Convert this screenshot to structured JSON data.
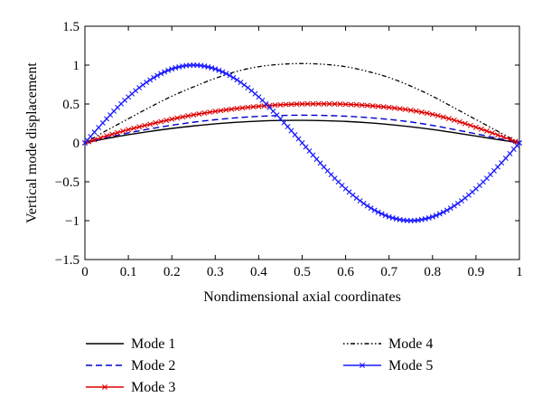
{
  "chart_data": {
    "type": "line",
    "title": "",
    "xlabel": "Nondimensional axial coordinates",
    "ylabel": "Vertical mode displacement",
    "xlim": [
      0,
      1
    ],
    "ylim": [
      -1.5,
      1.5
    ],
    "xticks": [
      0,
      0.1,
      0.2,
      0.3,
      0.4,
      0.5,
      0.6,
      0.7,
      0.8,
      0.9,
      1
    ],
    "yticks": [
      -1.5,
      -1,
      -0.5,
      0,
      0.5,
      1,
      1.5
    ],
    "xtick_labels": [
      "0",
      "0.1",
      "0.2",
      "0.3",
      "0.4",
      "0.5",
      "0.6",
      "0.7",
      "0.8",
      "0.9",
      "1"
    ],
    "ytick_labels": [
      "−1.5",
      "−1",
      "−0.5",
      "0",
      "0.5",
      "1",
      "1.5"
    ],
    "grid": false,
    "legend_placement": "below",
    "x": [
      0,
      0.05,
      0.1,
      0.15,
      0.2,
      0.25,
      0.3,
      0.35,
      0.4,
      0.45,
      0.5,
      0.55,
      0.6,
      0.65,
      0.7,
      0.75,
      0.8,
      0.85,
      0.9,
      0.95,
      1
    ],
    "series": [
      {
        "name": "Mode 1",
        "color": "#000000",
        "style": "solid",
        "marker": "none",
        "values": [
          0,
          0.056,
          0.105,
          0.148,
          0.186,
          0.218,
          0.245,
          0.265,
          0.28,
          0.288,
          0.29,
          0.286,
          0.276,
          0.259,
          0.236,
          0.207,
          0.172,
          0.131,
          0.088,
          0.043,
          0
        ]
      },
      {
        "name": "Mode 2",
        "color": "#0000cc",
        "style": "dashed",
        "marker": "none",
        "values": [
          0,
          0.068,
          0.128,
          0.181,
          0.227,
          0.266,
          0.298,
          0.323,
          0.341,
          0.352,
          0.356,
          0.353,
          0.343,
          0.326,
          0.302,
          0.269,
          0.225,
          0.172,
          0.117,
          0.059,
          0
        ]
      },
      {
        "name": "Mode 3",
        "color": "#dd0000",
        "style": "solid",
        "marker": "x",
        "values": [
          0,
          0.09,
          0.17,
          0.24,
          0.305,
          0.36,
          0.405,
          0.442,
          0.47,
          0.49,
          0.5,
          0.502,
          0.496,
          0.481,
          0.456,
          0.42,
          0.367,
          0.292,
          0.201,
          0.102,
          0
        ]
      },
      {
        "name": "Mode 4",
        "color": "#000000",
        "style": "dashdot",
        "marker": "none",
        "values": [
          0,
          0.16,
          0.31,
          0.46,
          0.6,
          0.72,
          0.83,
          0.92,
          0.98,
          1.01,
          1.02,
          1.01,
          0.98,
          0.92,
          0.84,
          0.73,
          0.6,
          0.45,
          0.3,
          0.15,
          0
        ]
      },
      {
        "name": "Mode 5",
        "color": "#1a1aff",
        "style": "solid",
        "marker": "x",
        "values": [
          0,
          0.31,
          0.59,
          0.81,
          0.95,
          1,
          0.95,
          0.81,
          0.59,
          0.31,
          0,
          -0.31,
          -0.59,
          -0.81,
          -0.95,
          -1,
          -0.95,
          -0.81,
          -0.59,
          -0.31,
          0
        ]
      }
    ]
  }
}
